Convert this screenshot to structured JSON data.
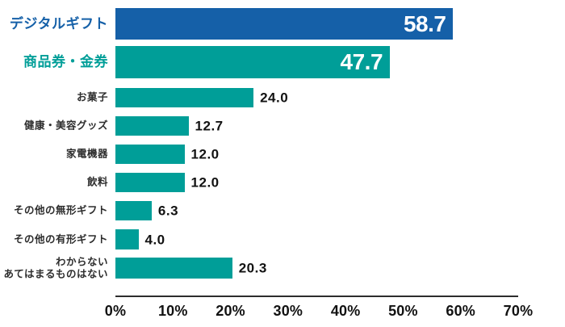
{
  "colors": {
    "blue": "#1560A8",
    "teal": "#009E98",
    "axis": "#2d2d2d",
    "small_label": "#2d2d2d",
    "value_inside_text": "#ffffff",
    "value_outside_text": "#121212"
  },
  "chart_data": {
    "type": "bar",
    "orientation": "horizontal",
    "unit": "%",
    "xlim": [
      0,
      70
    ],
    "x_ticks": [
      "0%",
      "10%",
      "20%",
      "30%",
      "40%",
      "50%",
      "60%",
      "70%"
    ],
    "grid": false,
    "legend": false,
    "rows": [
      {
        "label": "デジタルギフト",
        "value": 58.7,
        "value_label": "58.7",
        "color": "blue",
        "emphasized": true
      },
      {
        "label": "商品券・金券",
        "value": 47.7,
        "value_label": "47.7",
        "color": "teal",
        "emphasized": true
      },
      {
        "label": "お菓子",
        "value": 24.0,
        "value_label": "24.0",
        "color": "teal",
        "emphasized": false
      },
      {
        "label": "健康・美容グッズ",
        "value": 12.7,
        "value_label": "12.7",
        "color": "teal",
        "emphasized": false
      },
      {
        "label": "家電機器",
        "value": 12.0,
        "value_label": "12.0",
        "color": "teal",
        "emphasized": false
      },
      {
        "label": "飲料",
        "value": 12.0,
        "value_label": "12.0",
        "color": "teal",
        "emphasized": false
      },
      {
        "label": "その他の無形ギフト",
        "value": 6.3,
        "value_label": "6.3",
        "color": "teal",
        "emphasized": false
      },
      {
        "label": "その他の有形ギフト",
        "value": 4.0,
        "value_label": "4.0",
        "color": "teal",
        "emphasized": false
      },
      {
        "label_line1": "わからない",
        "label_line2": "あてはまるものはない",
        "value": 20.3,
        "value_label": "20.3",
        "color": "teal",
        "emphasized": false
      }
    ]
  }
}
